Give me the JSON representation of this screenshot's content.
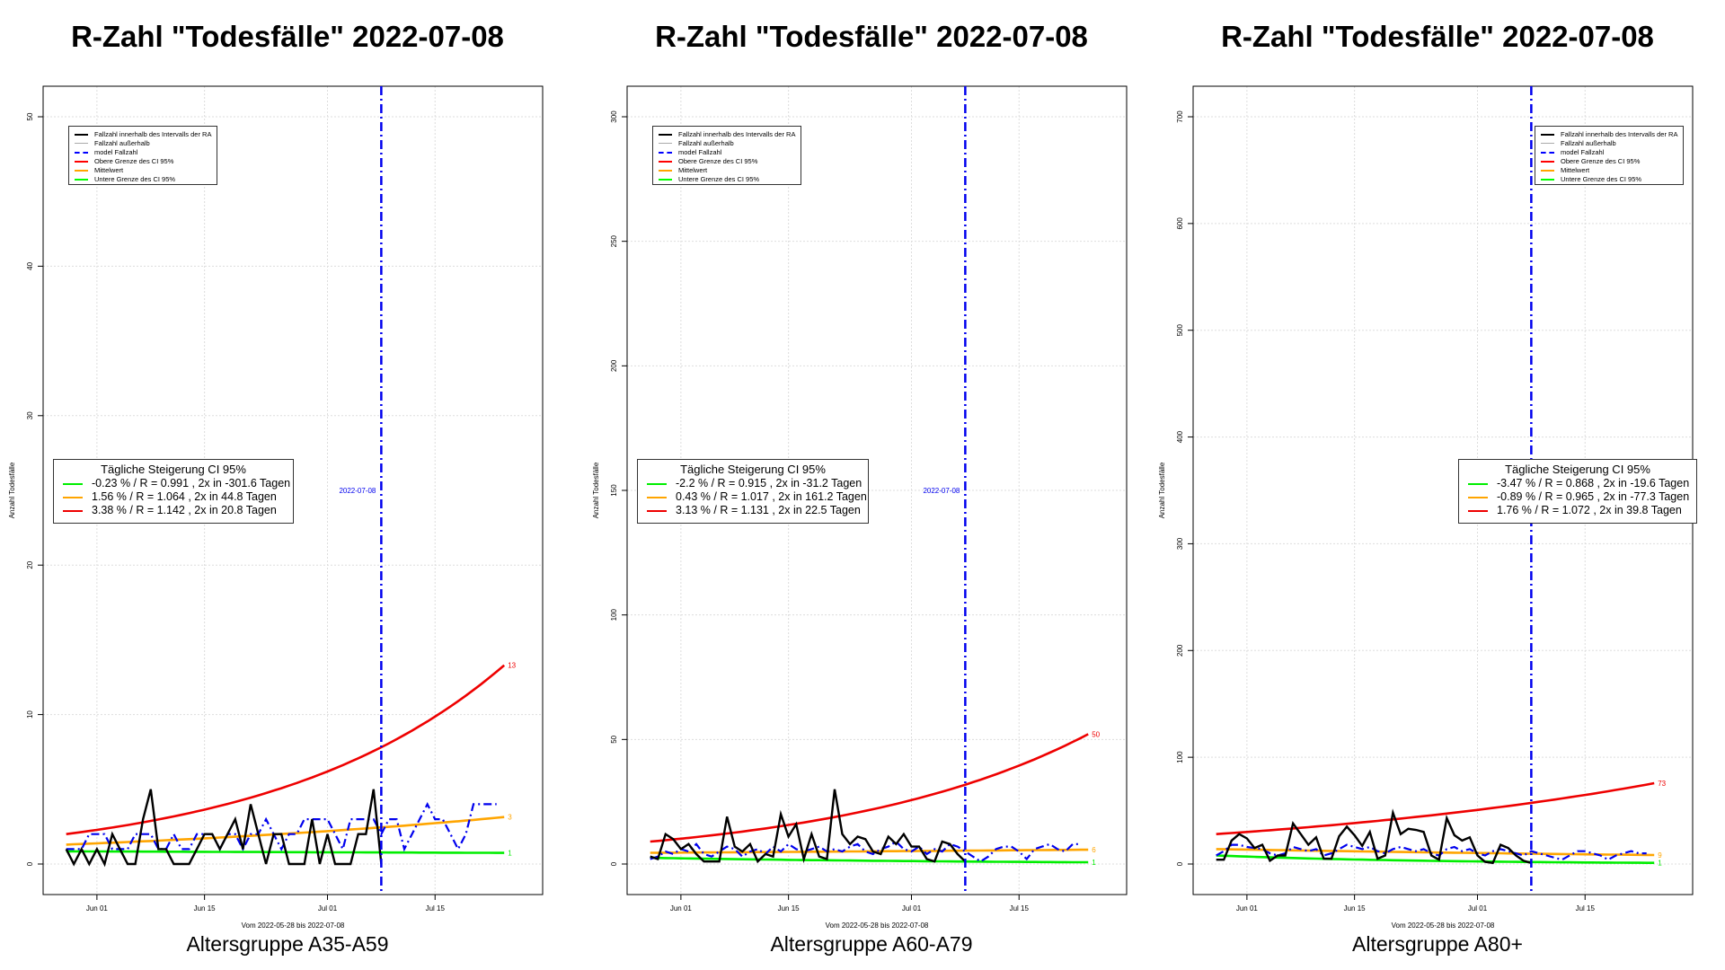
{
  "panels": [
    {
      "title": "R-Zahl \"Todesfälle\" 2022-07-08",
      "caption": "Altersgruppe A35-A59",
      "legend_box": {
        "items": [
          {
            "label": "Fallzahl innerhalb des Intervalls der RA",
            "color": "#000000",
            "style": "solid"
          },
          {
            "label": "Fallzahl außerhalb",
            "color": "#aaaaaa",
            "style": "solid"
          },
          {
            "label": "model Fallzahl",
            "color": "#0000ff",
            "style": "dashdot"
          },
          {
            "label": "Obere Grenze des CI 95%",
            "color": "#ff0000",
            "style": "solid"
          },
          {
            "label": "Mittelwert",
            "color": "#ffa500",
            "style": "solid"
          },
          {
            "label": "Untere Grenze des CI 95%",
            "color": "#00ff00",
            "style": "solid"
          }
        ]
      },
      "growth_box": {
        "title": "Tägliche Steigerung CI  95%",
        "rows": [
          {
            "label": "-0.23 % / R = 0.991 , 2x in -301.6 Tagen",
            "color": "#00ee00"
          },
          {
            "label": "1.56 % / R = 1.064 , 2x in 44.8 Tagen",
            "color": "#ffa500"
          },
          {
            "label": "3.38 % / R = 1.142 , 2x in 20.8 Tagen",
            "color": "#ee0000"
          }
        ]
      }
    },
    {
      "title": "R-Zahl \"Todesfälle\" 2022-07-08",
      "caption": "Altersgruppe A60-A79",
      "legend_box": {
        "items": [
          {
            "label": "Fallzahl innerhalb des Intervalls der RA",
            "color": "#000000",
            "style": "solid"
          },
          {
            "label": "Fallzahl außerhalb",
            "color": "#aaaaaa",
            "style": "solid"
          },
          {
            "label": "model Fallzahl",
            "color": "#0000ff",
            "style": "dashdot"
          },
          {
            "label": "Obere Grenze des CI 95%",
            "color": "#ff0000",
            "style": "solid"
          },
          {
            "label": "Mittelwert",
            "color": "#ffa500",
            "style": "solid"
          },
          {
            "label": "Untere Grenze des CI 95%",
            "color": "#00ff00",
            "style": "solid"
          }
        ]
      },
      "growth_box": {
        "title": "Tägliche Steigerung CI  95%",
        "rows": [
          {
            "label": "-2.2 % / R = 0.915 , 2x in -31.2 Tagen",
            "color": "#00ee00"
          },
          {
            "label": "0.43 % / R = 1.017 , 2x in 161.2 Tagen",
            "color": "#ffa500"
          },
          {
            "label": "3.13 % / R = 1.131 , 2x in 22.5 Tagen",
            "color": "#ee0000"
          }
        ]
      }
    },
    {
      "title": "R-Zahl \"Todesfälle\" 2022-07-08",
      "caption": "Altersgruppe A80+",
      "legend_box": {
        "items": [
          {
            "label": "Fallzahl innerhalb des Intervalls der RA",
            "color": "#000000",
            "style": "solid"
          },
          {
            "label": "Fallzahl außerhalb",
            "color": "#aaaaaa",
            "style": "solid"
          },
          {
            "label": "model Fallzahl",
            "color": "#0000ff",
            "style": "dashdot"
          },
          {
            "label": "Obere Grenze des CI 95%",
            "color": "#ff0000",
            "style": "solid"
          },
          {
            "label": "Mittelwert",
            "color": "#ffa500",
            "style": "solid"
          },
          {
            "label": "Untere Grenze des CI 95%",
            "color": "#00ff00",
            "style": "solid"
          }
        ]
      },
      "growth_box": {
        "title": "Tägliche Steigerung CI  95%",
        "rows": [
          {
            "label": "-3.47 % / R = 0.868 , 2x in -19.6 Tagen",
            "color": "#00ee00"
          },
          {
            "label": "-0.89 % / R = 0.965 , 2x in -77.3 Tagen",
            "color": "#ffa500"
          },
          {
            "label": "1.76 % / R = 1.072 , 2x in 39.8 Tagen",
            "color": "#ee0000"
          }
        ]
      }
    }
  ],
  "chart_data": [
    {
      "type": "line",
      "title": "R-Zahl \"Todesfälle\" 2022-07-08",
      "subtitle": "Altersgruppe A35-A59",
      "xlabel": "Vom 2022-05-28 bis 2022-07-08",
      "ylabel": "Anzahl Todesfälle",
      "xlim": [
        "2022-05-25",
        "2022-07-29"
      ],
      "ylim": [
        0,
        50
      ],
      "yticks": [
        0,
        10,
        20,
        30,
        40,
        50
      ],
      "xticks": [
        {
          "date": "2022-06-01",
          "label": "Jun 01"
        },
        {
          "date": "2022-06-15",
          "label": "Jun 15"
        },
        {
          "date": "2022-07-01",
          "label": "Jul 01"
        },
        {
          "date": "2022-07-15",
          "label": "Jul 15"
        }
      ],
      "grid": true,
      "vline": {
        "date": "2022-07-08",
        "label": "2022-07-08",
        "color": "#0000ee",
        "label_y": 25
      },
      "observed_start": "2022-05-28",
      "observed": [
        1,
        0,
        1,
        0,
        1,
        0,
        2,
        1,
        0,
        0,
        3,
        5,
        1,
        1,
        0,
        0,
        0,
        1,
        2,
        2,
        1,
        2,
        3,
        1,
        4,
        2,
        0,
        2,
        2,
        0,
        0,
        0,
        3,
        0,
        2,
        0,
        0,
        0,
        2,
        2,
        5,
        0
      ],
      "model_start": "2022-05-28",
      "model": [
        1,
        1,
        1,
        2,
        2,
        2,
        1,
        1,
        1,
        2,
        2,
        2,
        1,
        1,
        2,
        1,
        1,
        2,
        2,
        2,
        1,
        2,
        2,
        1,
        2,
        2,
        3,
        2,
        1,
        2,
        2,
        3,
        3,
        3,
        3,
        2,
        1,
        3,
        3,
        3,
        3,
        2,
        3,
        3,
        1,
        2,
        3,
        4,
        3,
        3,
        2,
        1,
        2,
        4,
        4,
        4,
        4
      ],
      "band_start": "2022-05-28",
      "band_end": "2022-07-24",
      "upper": {
        "start": 2.0,
        "rate": 0.0338,
        "end_label": "13",
        "color": "#ee0000"
      },
      "mean": {
        "start": 1.3,
        "rate": 0.0156,
        "end_label": "3",
        "color": "#ffa500"
      },
      "lower": {
        "start": 0.85,
        "rate": -0.0023,
        "end_label": "1",
        "color": "#00ee00"
      },
      "legend": "top-left"
    },
    {
      "type": "line",
      "title": "R-Zahl \"Todesfälle\" 2022-07-08",
      "subtitle": "Altersgruppe A60-A79",
      "xlabel": "Vom 2022-05-28 bis 2022-07-08",
      "ylabel": "Anzahl Todesfälle",
      "xlim": [
        "2022-05-25",
        "2022-07-29"
      ],
      "ylim": [
        0,
        300
      ],
      "yticks": [
        0,
        50,
        100,
        150,
        200,
        250,
        300
      ],
      "xticks": [
        {
          "date": "2022-06-01",
          "label": "Jun 01"
        },
        {
          "date": "2022-06-15",
          "label": "Jun 15"
        },
        {
          "date": "2022-07-01",
          "label": "Jul 01"
        },
        {
          "date": "2022-07-15",
          "label": "Jul 15"
        }
      ],
      "grid": true,
      "vline": {
        "date": "2022-07-08",
        "label": "2022-07-08",
        "color": "#0000ee",
        "label_y": 150
      },
      "observed_start": "2022-05-28",
      "observed": [
        3,
        2,
        12,
        10,
        6,
        8,
        4,
        1,
        1,
        1,
        19,
        7,
        5,
        8,
        1,
        4,
        3,
        20,
        11,
        16,
        2,
        12,
        3,
        2,
        30,
        12,
        8,
        11,
        10,
        5,
        4,
        11,
        8,
        12,
        7,
        7,
        2,
        1,
        9,
        8,
        4,
        1
      ],
      "model_start": "2022-05-28",
      "model": [
        2,
        3,
        5,
        4,
        6,
        5,
        8,
        4,
        3,
        5,
        7,
        6,
        3,
        5,
        6,
        4,
        7,
        5,
        8,
        6,
        5,
        6,
        7,
        5,
        6,
        5,
        7,
        8,
        5,
        4,
        6,
        7,
        9,
        6,
        5,
        7,
        4,
        6,
        5,
        8,
        7,
        5,
        3,
        1,
        3,
        6,
        7,
        7,
        5,
        2,
        6,
        7,
        8,
        6,
        5,
        8,
        8
      ],
      "band_start": "2022-05-28",
      "band_end": "2022-07-24",
      "upper": {
        "start": 9,
        "rate": 0.0313,
        "end_label": "50",
        "color": "#ee0000"
      },
      "mean": {
        "start": 4.5,
        "rate": 0.0043,
        "end_label": "6",
        "color": "#ffa500"
      },
      "lower": {
        "start": 2.5,
        "rate": -0.022,
        "end_label": "1",
        "color": "#00ee00"
      },
      "legend": "top-left"
    },
    {
      "type": "line",
      "title": "R-Zahl \"Todesfälle\" 2022-07-08",
      "subtitle": "Altersgruppe A80+",
      "xlabel": "Vom 2022-05-28 bis 2022-07-08",
      "ylabel": "Anzahl Todesfälle",
      "xlim": [
        "2022-05-25",
        "2022-07-29"
      ],
      "ylim": [
        0,
        700
      ],
      "yticks": [
        0,
        100,
        200,
        300,
        400,
        500,
        600,
        700
      ],
      "xticks": [
        {
          "date": "2022-06-01",
          "label": "Jun 01"
        },
        {
          "date": "2022-06-15",
          "label": "Jun 15"
        },
        {
          "date": "2022-07-01",
          "label": "Jul 01"
        },
        {
          "date": "2022-07-15",
          "label": "Jul 15"
        }
      ],
      "grid": true,
      "vline": {
        "date": "2022-07-08",
        "label": "",
        "color": "#0000ee",
        "label_y": 0
      },
      "observed_start": "2022-05-28",
      "observed": [
        4,
        4,
        22,
        28,
        24,
        15,
        18,
        3,
        8,
        8,
        38,
        28,
        18,
        25,
        5,
        5,
        26,
        35,
        27,
        17,
        30,
        5,
        8,
        48,
        28,
        33,
        32,
        30,
        8,
        4,
        43,
        27,
        22,
        25,
        8,
        2,
        1,
        18,
        15,
        8,
        3,
        1
      ],
      "model_start": "2022-05-28",
      "model": [
        8,
        12,
        18,
        18,
        16,
        15,
        14,
        10,
        8,
        10,
        16,
        14,
        12,
        14,
        8,
        10,
        14,
        18,
        16,
        14,
        16,
        12,
        10,
        14,
        16,
        14,
        12,
        14,
        10,
        8,
        14,
        16,
        12,
        14,
        10,
        8,
        12,
        14,
        12,
        10,
        8,
        12,
        10,
        8,
        6,
        4,
        8,
        12,
        12,
        10,
        8,
        4,
        8,
        10,
        12,
        10,
        10
      ],
      "band_start": "2022-05-28",
      "band_end": "2022-07-24",
      "upper": {
        "start": 28,
        "rate": 0.0176,
        "end_label": "73",
        "color": "#ee0000"
      },
      "mean": {
        "start": 14,
        "rate": -0.0089,
        "end_label": "9",
        "color": "#ffa500"
      },
      "lower": {
        "start": 8,
        "rate": -0.0347,
        "end_label": "1",
        "color": "#00ee00"
      },
      "legend": "top-left"
    }
  ]
}
